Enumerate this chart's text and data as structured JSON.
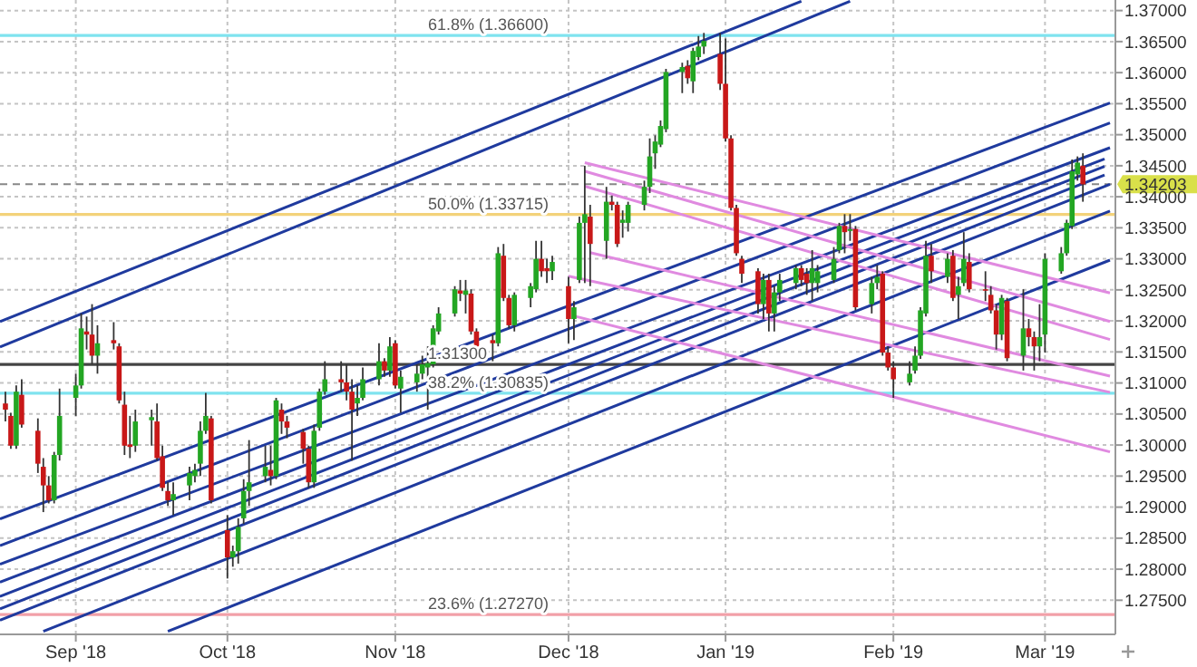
{
  "chart_data": {
    "type": "candlestick",
    "x": [
      "2018-08-21",
      "2018-08-22",
      "2018-08-23",
      "2018-08-24",
      "2018-08-27",
      "2018-08-28",
      "2018-08-29",
      "2018-08-30",
      "2018-08-31",
      "2018-09-03",
      "2018-09-04",
      "2018-09-05",
      "2018-09-06",
      "2018-09-07",
      "2018-09-10",
      "2018-09-11",
      "2018-09-12",
      "2018-09-13",
      "2018-09-14",
      "2018-09-17",
      "2018-09-18",
      "2018-09-19",
      "2018-09-20",
      "2018-09-21",
      "2018-09-24",
      "2018-09-25",
      "2018-09-26",
      "2018-09-27",
      "2018-09-28",
      "2018-10-01",
      "2018-10-02",
      "2018-10-03",
      "2018-10-04",
      "2018-10-05",
      "2018-10-08",
      "2018-10-09",
      "2018-10-10",
      "2018-10-11",
      "2018-10-12",
      "2018-10-15",
      "2018-10-16",
      "2018-10-17",
      "2018-10-18",
      "2018-10-19",
      "2018-10-22",
      "2018-10-23",
      "2018-10-24",
      "2018-10-25",
      "2018-10-26",
      "2018-10-29",
      "2018-10-30",
      "2018-10-31",
      "2018-11-01",
      "2018-11-02",
      "2018-11-05",
      "2018-11-06",
      "2018-11-07",
      "2018-11-08",
      "2018-11-09",
      "2018-11-12",
      "2018-11-13",
      "2018-11-14",
      "2018-11-15",
      "2018-11-16",
      "2018-11-19",
      "2018-11-20",
      "2018-11-21",
      "2018-11-22",
      "2018-11-23",
      "2018-11-26",
      "2018-11-27",
      "2018-11-28",
      "2018-11-29",
      "2018-11-30",
      "2018-12-03",
      "2018-12-04",
      "2018-12-05",
      "2018-12-06",
      "2018-12-07",
      "2018-12-10",
      "2018-12-11",
      "2018-12-12",
      "2018-12-13",
      "2018-12-14",
      "2018-12-17",
      "2018-12-18",
      "2018-12-19",
      "2018-12-20",
      "2018-12-21",
      "2018-12-24",
      "2018-12-25",
      "2018-12-26",
      "2018-12-27",
      "2018-12-28",
      "2018-12-31",
      "2019-01-01",
      "2019-01-02",
      "2019-01-03",
      "2019-01-04",
      "2019-01-07",
      "2019-01-08",
      "2019-01-09",
      "2019-01-10",
      "2019-01-11",
      "2019-01-14",
      "2019-01-15",
      "2019-01-16",
      "2019-01-17",
      "2019-01-18",
      "2019-01-21",
      "2019-01-22",
      "2019-01-23",
      "2019-01-24",
      "2019-01-25",
      "2019-01-28",
      "2019-01-29",
      "2019-01-30",
      "2019-01-31",
      "2019-02-01",
      "2019-02-04",
      "2019-02-05",
      "2019-02-06",
      "2019-02-07",
      "2019-02-08",
      "2019-02-11",
      "2019-02-12",
      "2019-02-13",
      "2019-02-14",
      "2019-02-15",
      "2019-02-18",
      "2019-02-19",
      "2019-02-20",
      "2019-02-21",
      "2019-02-22",
      "2019-02-25",
      "2019-02-26",
      "2019-02-27",
      "2019-02-28",
      "2019-03-01",
      "2019-03-04",
      "2019-03-05",
      "2019-03-06",
      "2019-03-07",
      "2019-03-08"
    ],
    "ohlc": [
      [
        1.3067,
        1.3086,
        1.3038,
        1.3057
      ],
      [
        1.3047,
        1.3052,
        1.2994,
        1.2999
      ],
      [
        1.2999,
        1.3096,
        1.2994,
        1.3086
      ],
      [
        1.3081,
        1.3106,
        1.3028,
        1.3033
      ],
      [
        1.3023,
        1.3043,
        1.2955,
        1.297
      ],
      [
        1.2965,
        1.2979,
        1.2892,
        1.2935
      ],
      [
        1.2935,
        1.295,
        1.2906,
        1.2911
      ],
      [
        1.2911,
        1.2989,
        1.2906,
        1.2984
      ],
      [
        1.2984,
        1.3091,
        1.2975,
        1.3047
      ],
      [
        1.3076,
        1.3115,
        1.3047,
        1.3096
      ],
      [
        1.3096,
        1.3212,
        1.3091,
        1.3188
      ],
      [
        1.3183,
        1.3207,
        1.3154,
        1.3178
      ],
      [
        1.3178,
        1.3227,
        1.313,
        1.3144
      ],
      [
        1.3144,
        1.3193,
        1.3115,
        1.3164
      ],
      [
        1.3169,
        1.3198,
        1.3154,
        1.3164
      ],
      [
        1.3159,
        1.3164,
        1.3067,
        1.3072
      ],
      [
        1.3065,
        1.3086,
        1.2984,
        1.2999
      ],
      [
        1.3001,
        1.3047,
        1.2979,
        1.2997
      ],
      [
        1.2999,
        1.3057,
        1.2989,
        1.3038
      ],
      [
        1.304,
        1.3057,
        1.2999,
        1.3045
      ],
      [
        1.3038,
        1.3067,
        1.2975,
        1.2979
      ],
      [
        1.2982,
        1.2999,
        1.2926,
        1.2931
      ],
      [
        1.2926,
        1.294,
        1.2902,
        1.2911
      ],
      [
        1.2911,
        1.294,
        1.2887,
        1.2921
      ],
      [
        1.2935,
        1.2965,
        1.2911,
        1.2955
      ],
      [
        1.295,
        1.297,
        1.294,
        1.296
      ],
      [
        1.297,
        1.3038,
        1.295,
        1.3023
      ],
      [
        1.3023,
        1.3084,
        1.3018,
        1.3047
      ],
      [
        1.3043,
        1.3047,
        1.2906,
        1.2911
      ],
      [
        1.2863,
        1.2887,
        1.2785,
        1.2819
      ],
      [
        1.2819,
        1.2838,
        1.2804,
        1.2829
      ],
      [
        1.2829,
        1.2882,
        1.2809,
        1.2868
      ],
      [
        1.2882,
        1.2945,
        1.2873,
        1.2926
      ],
      [
        1.2926,
        1.3008,
        1.2902,
        1.294
      ],
      [
        1.295,
        1.2999,
        1.294,
        1.2965
      ],
      [
        1.296,
        1.2999,
        1.2935,
        1.295
      ],
      [
        1.295,
        1.3076,
        1.2945,
        1.3072
      ],
      [
        1.3057,
        1.3067,
        1.3018,
        1.3038
      ],
      [
        1.3038,
        1.3047,
        1.3011,
        1.3028
      ],
      [
        1.3021,
        1.3026,
        1.297,
        1.2994
      ],
      [
        1.2994,
        1.2999,
        1.2931,
        1.294
      ],
      [
        1.294,
        1.3033,
        1.2931,
        1.3023
      ],
      [
        1.3028,
        1.3091,
        1.3023,
        1.3086
      ],
      [
        1.3086,
        1.3135,
        1.3081,
        1.3106
      ],
      [
        1.3106,
        1.3135,
        1.3086,
        1.3101
      ],
      [
        1.3101,
        1.313,
        1.3072,
        1.3086
      ],
      [
        1.3086,
        1.3106,
        1.2975,
        1.3057
      ],
      [
        1.3067,
        1.3096,
        1.3047,
        1.3076
      ],
      [
        1.3076,
        1.3125,
        1.3072,
        1.3106
      ],
      [
        1.3106,
        1.3164,
        1.3096,
        1.3135
      ],
      [
        1.3135,
        1.314,
        1.311,
        1.312
      ],
      [
        1.312,
        1.3174,
        1.311,
        1.3159
      ],
      [
        1.3164,
        1.3169,
        1.3091,
        1.3096
      ],
      [
        1.3091,
        1.312,
        1.3052,
        1.311
      ],
      [
        1.3101,
        1.313,
        1.3086,
        1.3115
      ],
      [
        1.3115,
        1.3144,
        1.3106,
        1.313
      ],
      [
        1.3125,
        1.3159,
        1.3057,
        1.3132
      ],
      [
        1.313,
        1.3193,
        1.3125,
        1.3188
      ],
      [
        1.3183,
        1.3222,
        1.3178,
        1.3212
      ],
      [
        1.3212,
        1.3256,
        1.3207,
        1.3251
      ],
      [
        1.3249,
        1.3266,
        1.3232,
        1.3244
      ],
      [
        1.3242,
        1.3266,
        1.3212,
        1.3249
      ],
      [
        1.3244,
        1.3251,
        1.3178,
        1.3183
      ],
      [
        1.3183,
        1.3188,
        1.3149,
        1.3154
      ],
      [
        1.3169,
        1.3178,
        1.3135,
        1.3164
      ],
      [
        1.3164,
        1.3319,
        1.3159,
        1.3309
      ],
      [
        1.3305,
        1.3324,
        1.3232,
        1.3237
      ],
      [
        1.3237,
        1.3242,
        1.3188,
        1.3193
      ],
      [
        1.3193,
        1.3246,
        1.3183,
        1.3242
      ],
      [
        1.3237,
        1.3261,
        1.3222,
        1.3256
      ],
      [
        1.3251,
        1.3329,
        1.3246,
        1.33
      ],
      [
        1.33,
        1.3329,
        1.3271,
        1.328
      ],
      [
        1.3285,
        1.33,
        1.3261,
        1.328
      ],
      [
        1.328,
        1.3305,
        1.3266,
        1.3295
      ],
      [
        1.3256,
        1.3271,
        1.3164,
        1.3203
      ],
      [
        1.3203,
        1.3232,
        1.3169,
        1.3222
      ],
      [
        1.3266,
        1.3368,
        1.3261,
        1.3358
      ],
      [
        1.3358,
        1.345,
        1.3261,
        1.3372
      ],
      [
        1.3368,
        1.3387,
        1.3256,
        1.3324
      ],
      [
        1.3329,
        1.3416,
        1.33,
        1.3392
      ],
      [
        1.3392,
        1.3402,
        1.3378,
        1.3387
      ],
      [
        1.3387,
        1.3392,
        1.3319,
        1.3324
      ],
      [
        1.3358,
        1.3378,
        1.3334,
        1.3363
      ],
      [
        1.3358,
        1.3392,
        1.3344,
        1.3387
      ],
      [
        1.3387,
        1.3426,
        1.3378,
        1.3416
      ],
      [
        1.3416,
        1.3494,
        1.3406,
        1.3465
      ],
      [
        1.347,
        1.3499,
        1.3445,
        1.3489
      ],
      [
        1.3484,
        1.3523,
        1.348,
        1.3514
      ],
      [
        1.3509,
        1.3606,
        1.3504,
        1.3601
      ],
      [
        1.3601,
        1.3616,
        1.3567,
        1.3609
      ],
      [
        1.3611,
        1.362,
        1.3582,
        1.3591
      ],
      [
        1.3586,
        1.364,
        1.3567,
        1.3635
      ],
      [
        1.3625,
        1.3659,
        1.362,
        1.3642
      ],
      [
        1.3642,
        1.3664,
        1.363,
        1.3651
      ],
      [
        1.363,
        1.3664,
        1.3572,
        1.3582
      ],
      [
        1.3582,
        1.3655,
        1.3489,
        1.3494
      ],
      [
        1.3494,
        1.3499,
        1.3378,
        1.3382
      ],
      [
        1.3382,
        1.3387,
        1.3305,
        1.3309
      ],
      [
        1.33,
        1.3305,
        1.3261,
        1.3276
      ],
      [
        1.328,
        1.3285,
        1.3212,
        1.3227
      ],
      [
        1.3227,
        1.3276,
        1.3203,
        1.3266
      ],
      [
        1.3266,
        1.3276,
        1.3183,
        1.3212
      ],
      [
        1.3212,
        1.3256,
        1.3183,
        1.3246
      ],
      [
        1.3246,
        1.3276,
        1.3232,
        1.3266
      ],
      [
        1.3261,
        1.329,
        1.3251,
        1.3285
      ],
      [
        1.3285,
        1.329,
        1.3256,
        1.3266
      ],
      [
        1.3276,
        1.3285,
        1.3242,
        1.3261
      ],
      [
        1.3261,
        1.3314,
        1.3232,
        1.3285
      ],
      [
        1.3261,
        1.329,
        1.3246,
        1.328
      ],
      [
        1.3266,
        1.3319,
        1.3261,
        1.33
      ],
      [
        1.3314,
        1.3358,
        1.3309,
        1.3353
      ],
      [
        1.3353,
        1.3372,
        1.3309,
        1.3343
      ],
      [
        1.3345,
        1.3372,
        1.3329,
        1.3348
      ],
      [
        1.3348,
        1.3353,
        1.3217,
        1.3222
      ],
      [
        1.3227,
        1.3271,
        1.3212,
        1.3261
      ],
      [
        1.3261,
        1.329,
        1.3251,
        1.3271
      ],
      [
        1.3276,
        1.328,
        1.3144,
        1.3149
      ],
      [
        1.3149,
        1.3159,
        1.312,
        1.3125
      ],
      [
        1.3125,
        1.3135,
        1.3076,
        1.3106
      ],
      [
        1.3101,
        1.3135,
        1.3096,
        1.3115
      ],
      [
        1.312,
        1.3159,
        1.3115,
        1.3144
      ],
      [
        1.3144,
        1.3222,
        1.3139,
        1.3217
      ],
      [
        1.3212,
        1.3329,
        1.3207,
        1.3305
      ],
      [
        1.3305,
        1.3324,
        1.3261,
        1.328
      ],
      [
        1.3271,
        1.3309,
        1.3261,
        1.33
      ],
      [
        1.3305,
        1.3314,
        1.3232,
        1.3237
      ],
      [
        1.3242,
        1.3271,
        1.3203,
        1.3256
      ],
      [
        1.3261,
        1.3343,
        1.3256,
        1.33
      ],
      [
        1.3295,
        1.3309,
        1.3246,
        1.3251
      ],
      [
        1.3251,
        1.328,
        1.3232,
        1.3249
      ],
      [
        1.3242,
        1.3256,
        1.3212,
        1.3217
      ],
      [
        1.3217,
        1.3227,
        1.3154,
        1.3178
      ],
      [
        1.3178,
        1.3242,
        1.3169,
        1.3237
      ],
      [
        1.3232,
        1.3237,
        1.3135,
        1.314
      ],
      [
        1.3144,
        1.3251,
        1.312,
        1.3188
      ],
      [
        1.3188,
        1.3203,
        1.3159,
        1.3174
      ],
      [
        1.3174,
        1.3183,
        1.312,
        1.3159
      ],
      [
        1.3159,
        1.3227,
        1.3135,
        1.3174
      ],
      [
        1.3178,
        1.3309,
        1.3149,
        1.33
      ],
      [
        1.328,
        1.3319,
        1.3276,
        1.3309
      ],
      [
        1.3309,
        1.3363,
        1.3305,
        1.3358
      ],
      [
        1.3353,
        1.346,
        1.3348,
        1.3441
      ],
      [
        1.3436,
        1.3465,
        1.3426,
        1.3455
      ],
      [
        1.345,
        1.347,
        1.3392,
        1.342
      ]
    ],
    "series": [
      {
        "type": "line",
        "color": "#1f3a9e",
        "x": [
          "2018-08-20",
          "2019-01-15"
        ],
        "values": [
          1.3199,
          1.3715
        ]
      },
      {
        "type": "line",
        "color": "#1f3a9e",
        "x": [
          "2018-08-20",
          "2019-01-24"
        ],
        "values": [
          1.3158,
          1.3715
        ]
      },
      {
        "type": "line",
        "color": "#1f3a9e",
        "x": [
          "2018-08-20",
          "2019-03-13"
        ],
        "values": [
          1.2881,
          1.3551
        ]
      },
      {
        "type": "line",
        "color": "#1f3a9e",
        "x": [
          "2018-08-20",
          "2019-03-13"
        ],
        "values": [
          1.2838,
          1.3519
        ]
      },
      {
        "type": "line",
        "color": "#1f3a9e",
        "x": [
          "2018-08-20",
          "2019-03-13"
        ],
        "values": [
          1.2808,
          1.3479
        ]
      },
      {
        "type": "line",
        "color": "#1f3a9e",
        "x": [
          "2018-08-20",
          "2019-03-12"
        ],
        "values": [
          1.2779,
          1.3461
        ]
      },
      {
        "type": "line",
        "color": "#1f3a9e",
        "x": [
          "2018-08-20",
          "2019-03-12"
        ],
        "values": [
          1.2756,
          1.3449
        ]
      },
      {
        "type": "line",
        "color": "#1f3a9e",
        "x": [
          "2018-08-20",
          "2019-03-12"
        ],
        "values": [
          1.2736,
          1.3435
        ]
      },
      {
        "type": "line",
        "color": "#1f3a9e",
        "x": [
          "2018-08-20",
          "2019-03-13"
        ],
        "values": [
          1.2718,
          1.342
        ]
      },
      {
        "type": "line",
        "color": "#1f3a9e",
        "x": [
          "2018-08-28",
          "2019-03-13"
        ],
        "values": [
          1.27,
          1.3377
        ]
      },
      {
        "type": "line",
        "color": "#1f3a9e",
        "x": [
          "2018-09-20",
          "2019-03-13"
        ],
        "values": [
          1.27,
          1.3298
        ]
      },
      {
        "type": "line",
        "color": "#e08ae0",
        "x": [
          "2018-12-06",
          "2019-03-13"
        ],
        "values": [
          1.3455,
          1.3245
        ]
      },
      {
        "type": "line",
        "color": "#e08ae0",
        "x": [
          "2018-12-06",
          "2019-03-13"
        ],
        "values": [
          1.3441,
          1.3199
        ]
      },
      {
        "type": "line",
        "color": "#e08ae0",
        "x": [
          "2018-12-06",
          "2019-03-13"
        ],
        "values": [
          1.3417,
          1.317
        ]
      },
      {
        "type": "line",
        "color": "#e08ae0",
        "x": [
          "2018-12-07",
          "2019-03-13"
        ],
        "values": [
          1.331,
          1.3111
        ]
      },
      {
        "type": "line",
        "color": "#e08ae0",
        "x": [
          "2018-12-03",
          "2019-03-13"
        ],
        "values": [
          1.3272,
          1.3085
        ]
      },
      {
        "type": "line",
        "color": "#e08ae0",
        "x": [
          "2018-12-04",
          "2019-03-13"
        ],
        "values": [
          1.3208,
          1.2989
        ]
      }
    ],
    "ref_lines": [
      {
        "axis": "y",
        "value": 1.366,
        "label": "61.8% (1.36600)",
        "color": "#7fe3ef"
      },
      {
        "axis": "y",
        "value": 1.33715,
        "label": "50.0% (1.33715)",
        "color": "#f3d27a"
      },
      {
        "axis": "y",
        "value": 1.313,
        "label": "1.31300",
        "color": "#444444"
      },
      {
        "axis": "y",
        "value": 1.30835,
        "label": "38.2% (1.30835)",
        "color": "#7fe3ef"
      },
      {
        "axis": "y",
        "value": 1.2727,
        "label": "23.6% (1.27270)",
        "color": "#f2a0a8"
      },
      {
        "axis": "y",
        "value": 1.34203,
        "label": "1.34203",
        "color": "#888888",
        "line_style": "dashed"
      }
    ],
    "xlim": [
      "2018-08-20",
      "2019-03-14"
    ],
    "xticks": [
      {
        "value": "2018-09-03",
        "label": "Sep '18"
      },
      {
        "value": "2018-10-01",
        "label": "Oct '18"
      },
      {
        "value": "2018-11-01",
        "label": "Nov '18"
      },
      {
        "value": "2018-12-03",
        "label": "Dec '18"
      },
      {
        "value": "2019-01-01",
        "label": "Jan '19"
      },
      {
        "value": "2019-02-01",
        "label": "Feb '19"
      },
      {
        "value": "2019-03-01",
        "label": "Mar '19"
      }
    ],
    "ylim": [
      1.2695,
      1.3717
    ],
    "yticks": [
      {
        "value": 1.275,
        "label": "1.27500"
      },
      {
        "value": 1.28,
        "label": "1.28000"
      },
      {
        "value": 1.285,
        "label": "1.28500"
      },
      {
        "value": 1.29,
        "label": "1.29000"
      },
      {
        "value": 1.295,
        "label": "1.29500"
      },
      {
        "value": 1.3,
        "label": "1.30000"
      },
      {
        "value": 1.305,
        "label": "1.30500"
      },
      {
        "value": 1.31,
        "label": "1.31000"
      },
      {
        "value": 1.315,
        "label": "1.31500"
      },
      {
        "value": 1.32,
        "label": "1.32000"
      },
      {
        "value": 1.325,
        "label": "1.32500"
      },
      {
        "value": 1.33,
        "label": "1.33000"
      },
      {
        "value": 1.335,
        "label": "1.33500"
      },
      {
        "value": 1.34,
        "label": "1.34000"
      },
      {
        "value": 1.345,
        "label": "1.34500"
      },
      {
        "value": 1.35,
        "label": "1.35000"
      },
      {
        "value": 1.355,
        "label": "1.35500"
      },
      {
        "value": 1.36,
        "label": "1.36000"
      },
      {
        "value": 1.365,
        "label": "1.36500"
      },
      {
        "value": 1.37,
        "label": "1.37000"
      }
    ],
    "grid": true,
    "marker": "none",
    "line_style": "solid"
  }
}
